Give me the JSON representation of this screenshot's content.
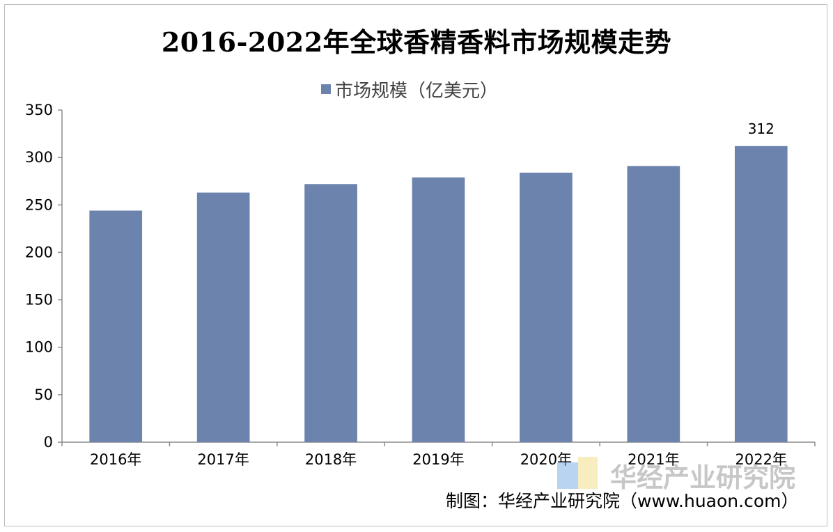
{
  "title": "2016-2022年全球香精香料市场规模走势",
  "legend": {
    "label": "市场规模（亿美元）",
    "color": "#6b83ad"
  },
  "watermark": {
    "text": "华经产业研究院"
  },
  "source": "制图：华经产业研究院（www.huaon.com）",
  "chart_data": {
    "type": "bar",
    "categories": [
      "2016年",
      "2017年",
      "2018年",
      "2019年",
      "2020年",
      "2021年",
      "2022年"
    ],
    "series": [
      {
        "name": "市场规模（亿美元）",
        "values": [
          244,
          263,
          272,
          279,
          284,
          291,
          312
        ],
        "color": "#6b83ad"
      }
    ],
    "data_labels": [
      {
        "index": 6,
        "text": "312"
      }
    ],
    "y_ticks": [
      "0",
      "50",
      "100",
      "150",
      "200",
      "250",
      "300",
      "350"
    ],
    "ylim": [
      0,
      350
    ],
    "grid": false,
    "legend_position": "top-center"
  }
}
